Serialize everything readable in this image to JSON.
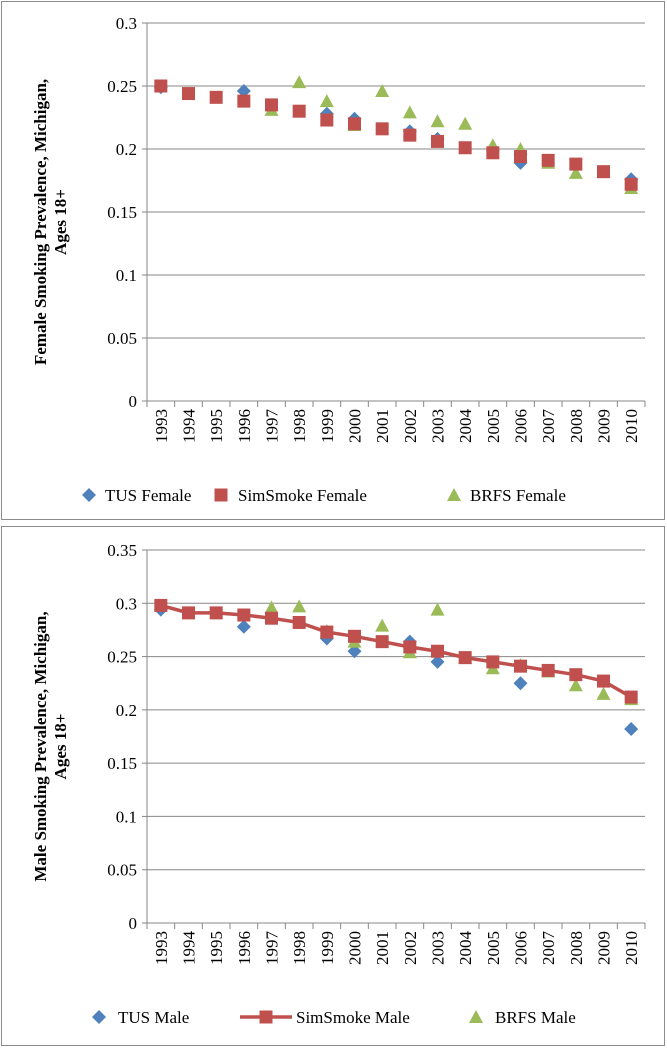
{
  "chart_data": [
    {
      "type": "scatter",
      "title": "",
      "xlabel": "",
      "ylabel": "Female Smoking Prevalence, Michigan, Ages 18+",
      "ylabel_lines": [
        "Female Smoking Prevalence, Michigan,",
        "Ages 18+"
      ],
      "categories": [
        "1993",
        "1994",
        "1995",
        "1996",
        "1997",
        "1998",
        "1999",
        "2000",
        "2001",
        "2002",
        "2003",
        "2004",
        "2005",
        "2006",
        "2007",
        "2008",
        "2009",
        "2010"
      ],
      "ylim": [
        0,
        0.3
      ],
      "yticks": [
        0,
        0.05,
        0.1,
        0.15,
        0.2,
        0.25,
        0.3
      ],
      "ytick_labels": [
        "0",
        "0.05",
        "0.1",
        "0.15",
        "0.2",
        "0.25",
        "0.3"
      ],
      "grid": true,
      "legend_position": "bottom",
      "series": [
        {
          "name": "TUS Female",
          "marker": "diamond",
          "color": "#4f81bd",
          "line": false,
          "values": [
            0.249,
            null,
            null,
            0.246,
            null,
            null,
            0.228,
            0.224,
            null,
            0.214,
            0.208,
            null,
            null,
            0.189,
            null,
            null,
            null,
            0.176
          ]
        },
        {
          "name": "SimSmoke Female",
          "marker": "square",
          "color": "#c0504d",
          "line": false,
          "values": [
            0.25,
            0.244,
            0.241,
            0.238,
            0.235,
            0.23,
            0.223,
            0.22,
            0.216,
            0.211,
            0.206,
            0.201,
            0.197,
            0.194,
            0.191,
            0.188,
            0.182,
            0.172
          ]
        },
        {
          "name": "BRFS Female",
          "marker": "triangle",
          "color": "#9bbb59",
          "line": false,
          "values": [
            null,
            null,
            null,
            null,
            0.231,
            0.253,
            0.238,
            0.219,
            0.246,
            0.229,
            0.222,
            0.22,
            0.203,
            0.2,
            0.189,
            0.181,
            0.182,
            0.169
          ]
        }
      ]
    },
    {
      "type": "line",
      "title": "",
      "xlabel": "",
      "ylabel": "Male Smoking Prevalence, Michigan, Ages 18+",
      "ylabel_lines": [
        "Male Smoking Prevalence, Michigan,",
        "Ages 18+"
      ],
      "categories": [
        "1993",
        "1994",
        "1995",
        "1996",
        "1997",
        "1998",
        "1999",
        "2000",
        "2001",
        "2002",
        "2003",
        "2004",
        "2005",
        "2006",
        "2007",
        "2008",
        "2009",
        "2010"
      ],
      "ylim": [
        0,
        0.35
      ],
      "yticks": [
        0,
        0.05,
        0.1,
        0.15,
        0.2,
        0.25,
        0.3,
        0.35
      ],
      "ytick_labels": [
        "0",
        "0.05",
        "0.1",
        "0.15",
        "0.2",
        "0.25",
        "0.3",
        "0.35"
      ],
      "grid": true,
      "legend_position": "bottom",
      "series": [
        {
          "name": "TUS Male",
          "marker": "diamond",
          "color": "#4f81bd",
          "line": false,
          "values": [
            0.294,
            null,
            null,
            0.278,
            null,
            null,
            0.267,
            0.255,
            null,
            0.264,
            0.245,
            null,
            null,
            0.225,
            null,
            null,
            null,
            0.182
          ]
        },
        {
          "name": "SimSmoke Male",
          "marker": "square",
          "color": "#c0504d",
          "line": true,
          "values": [
            0.298,
            0.291,
            0.291,
            0.289,
            0.286,
            0.282,
            0.273,
            0.269,
            0.264,
            0.259,
            0.255,
            0.249,
            0.245,
            0.241,
            0.237,
            0.233,
            0.227,
            0.212
          ]
        },
        {
          "name": "BRFS Male",
          "marker": "triangle",
          "color": "#9bbb59",
          "line": false,
          "values": [
            null,
            null,
            null,
            null,
            0.296,
            0.297,
            0.274,
            0.264,
            0.279,
            0.254,
            0.294,
            0.249,
            0.239,
            0.242,
            0.236,
            0.223,
            0.215,
            0.21
          ]
        }
      ]
    }
  ]
}
